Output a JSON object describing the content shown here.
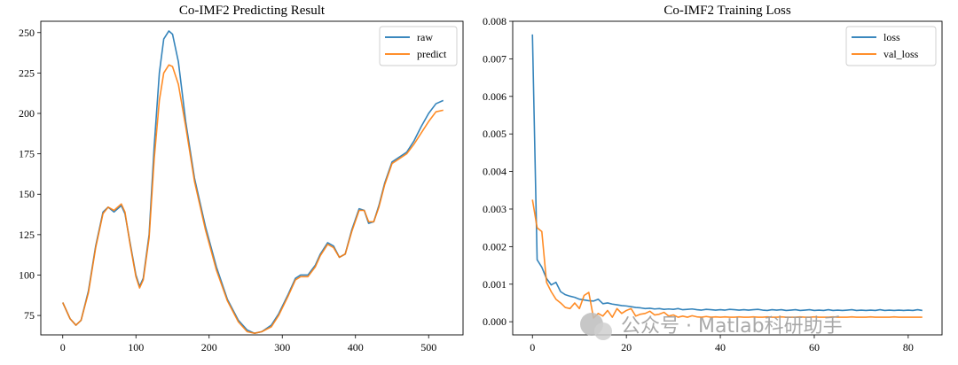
{
  "watermark": "公众号 · Matlab科研助手",
  "colors": {
    "raw": "#1f77b4",
    "predict": "#ff7f0e"
  },
  "chart_data": [
    {
      "type": "line",
      "title": "Co-IMF2 Predicting Result",
      "xlim": [
        -30,
        547
      ],
      "ylim": [
        63,
        257
      ],
      "xticks": [
        0,
        100,
        200,
        300,
        400,
        500
      ],
      "yticks": [
        75,
        100,
        125,
        150,
        175,
        200,
        225,
        250
      ],
      "legend_position": "top-right",
      "series": [
        {
          "name": "raw",
          "points": [
            [
              0,
              83
            ],
            [
              10,
              73
            ],
            [
              18,
              69
            ],
            [
              25,
              72
            ],
            [
              35,
              90
            ],
            [
              45,
              118
            ],
            [
              55,
              139
            ],
            [
              62,
              142
            ],
            [
              70,
              139
            ],
            [
              80,
              143
            ],
            [
              85,
              138
            ],
            [
              92,
              120
            ],
            [
              100,
              100
            ],
            [
              105,
              93
            ],
            [
              110,
              98
            ],
            [
              118,
              125
            ],
            [
              125,
              180
            ],
            [
              132,
              225
            ],
            [
              138,
              246
            ],
            [
              145,
              251
            ],
            [
              150,
              249
            ],
            [
              158,
              232
            ],
            [
              168,
              195
            ],
            [
              180,
              160
            ],
            [
              195,
              130
            ],
            [
              210,
              105
            ],
            [
              225,
              85
            ],
            [
              240,
              72
            ],
            [
              252,
              66
            ],
            [
              262,
              64
            ],
            [
              272,
              65
            ],
            [
              285,
              69
            ],
            [
              295,
              76
            ],
            [
              308,
              88
            ],
            [
              318,
              98
            ],
            [
              325,
              100
            ],
            [
              335,
              100
            ],
            [
              345,
              106
            ],
            [
              352,
              113
            ],
            [
              362,
              120
            ],
            [
              370,
              118
            ],
            [
              378,
              111
            ],
            [
              386,
              113
            ],
            [
              395,
              128
            ],
            [
              405,
              141
            ],
            [
              412,
              140
            ],
            [
              418,
              132
            ],
            [
              425,
              133
            ],
            [
              432,
              143
            ],
            [
              440,
              157
            ],
            [
              450,
              170
            ],
            [
              460,
              173
            ],
            [
              470,
              176
            ],
            [
              480,
              183
            ],
            [
              490,
              192
            ],
            [
              500,
              200
            ],
            [
              510,
              206
            ],
            [
              520,
              208
            ]
          ]
        },
        {
          "name": "predict",
          "points": [
            [
              0,
              83
            ],
            [
              10,
              73
            ],
            [
              18,
              69
            ],
            [
              25,
              72
            ],
            [
              35,
              89
            ],
            [
              45,
              117
            ],
            [
              55,
              138
            ],
            [
              62,
              142
            ],
            [
              70,
              140
            ],
            [
              80,
              144
            ],
            [
              85,
              139
            ],
            [
              92,
              119
            ],
            [
              100,
              99
            ],
            [
              105,
              92
            ],
            [
              110,
              97
            ],
            [
              118,
              123
            ],
            [
              125,
              172
            ],
            [
              132,
              208
            ],
            [
              138,
              225
            ],
            [
              145,
              230
            ],
            [
              150,
              229
            ],
            [
              158,
              218
            ],
            [
              168,
              192
            ],
            [
              180,
              158
            ],
            [
              195,
              128
            ],
            [
              210,
              103
            ],
            [
              225,
              84
            ],
            [
              240,
              71
            ],
            [
              252,
              65
            ],
            [
              262,
              64
            ],
            [
              272,
              65
            ],
            [
              285,
              68
            ],
            [
              295,
              75
            ],
            [
              308,
              87
            ],
            [
              318,
              97
            ],
            [
              325,
              99
            ],
            [
              335,
              99
            ],
            [
              345,
              105
            ],
            [
              352,
              112
            ],
            [
              362,
              119
            ],
            [
              370,
              117
            ],
            [
              378,
              111
            ],
            [
              386,
              113
            ],
            [
              395,
              127
            ],
            [
              405,
              140
            ],
            [
              412,
              140
            ],
            [
              418,
              133
            ],
            [
              425,
              133
            ],
            [
              432,
              142
            ],
            [
              440,
              156
            ],
            [
              450,
              169
            ],
            [
              460,
              172
            ],
            [
              470,
              175
            ],
            [
              480,
              181
            ],
            [
              490,
              188
            ],
            [
              500,
              195
            ],
            [
              510,
              201
            ],
            [
              520,
              202
            ]
          ]
        }
      ]
    },
    {
      "type": "line",
      "title": "Co-IMF2 Training Loss",
      "xlim": [
        -4.2,
        87.2
      ],
      "ylim": [
        -0.00035,
        0.008
      ],
      "xticks": [
        0,
        20,
        40,
        60,
        80
      ],
      "yticks": [
        "0.000",
        "0.001",
        "0.002",
        "0.003",
        "0.004",
        "0.005",
        "0.006",
        "0.007",
        "0.008"
      ],
      "legend_position": "top-right",
      "series": [
        {
          "name": "loss",
          "x": [
            0,
            1,
            2,
            3,
            4,
            5,
            6,
            7,
            8,
            9,
            10,
            11,
            12,
            13,
            14,
            15,
            16,
            17,
            18,
            19,
            20,
            21,
            22,
            23,
            24,
            25,
            26,
            27,
            28,
            29,
            30,
            31,
            32,
            33,
            34,
            35,
            36,
            37,
            38,
            39,
            40,
            41,
            42,
            43,
            44,
            45,
            46,
            47,
            48,
            49,
            50,
            51,
            52,
            53,
            54,
            55,
            56,
            57,
            58,
            59,
            60,
            61,
            62,
            63,
            64,
            65,
            66,
            67,
            68,
            69,
            70,
            71,
            72,
            73,
            74,
            75,
            76,
            77,
            78,
            79,
            80,
            81,
            82,
            83
          ],
          "values": [
            0.00765,
            0.00165,
            0.00145,
            0.00115,
            0.00098,
            0.00105,
            0.0008,
            0.00072,
            0.00068,
            0.00065,
            0.0006,
            0.00058,
            0.00056,
            0.00055,
            0.0006,
            0.00048,
            0.0005,
            0.00047,
            0.00045,
            0.00043,
            0.00042,
            0.0004,
            0.00038,
            0.00037,
            0.00035,
            0.00036,
            0.00034,
            0.00035,
            0.00033,
            0.00034,
            0.00033,
            0.00035,
            0.00032,
            0.00033,
            0.00034,
            0.00032,
            0.00031,
            0.00033,
            0.00032,
            0.00031,
            0.00032,
            0.00031,
            0.00033,
            0.00032,
            0.00031,
            0.00032,
            0.00031,
            0.00032,
            0.00033,
            0.00031,
            0.0003,
            0.00032,
            0.00031,
            0.00032,
            0.0003,
            0.00031,
            0.00032,
            0.0003,
            0.00031,
            0.00032,
            0.0003,
            0.00031,
            0.0003,
            0.00032,
            0.0003,
            0.00031,
            0.0003,
            0.00031,
            0.00032,
            0.0003,
            0.00031,
            0.0003,
            0.00031,
            0.0003,
            0.00032,
            0.0003,
            0.00031,
            0.0003,
            0.00031,
            0.0003,
            0.00031,
            0.0003,
            0.00032,
            0.0003
          ]
        },
        {
          "name": "val_loss",
          "x": [
            0,
            1,
            2,
            3,
            4,
            5,
            6,
            7,
            8,
            9,
            10,
            11,
            12,
            13,
            14,
            15,
            16,
            17,
            18,
            19,
            20,
            21,
            22,
            23,
            24,
            25,
            26,
            27,
            28,
            29,
            30,
            31,
            32,
            33,
            34,
            35,
            36,
            37,
            38,
            39,
            40,
            41,
            42,
            43,
            44,
            45,
            46,
            47,
            48,
            49,
            50,
            51,
            52,
            53,
            54,
            55,
            56,
            57,
            58,
            59,
            60,
            61,
            62,
            63,
            64,
            65,
            66,
            67,
            68,
            69,
            70,
            71,
            72,
            73,
            74,
            75,
            76,
            77,
            78,
            79,
            80,
            81,
            82,
            83
          ],
          "values": [
            0.00325,
            0.0025,
            0.0024,
            0.00105,
            0.0008,
            0.0006,
            0.0005,
            0.00038,
            0.00035,
            0.0005,
            0.00035,
            0.0007,
            0.00078,
            0.0001,
            0.00022,
            0.00015,
            0.0003,
            0.00012,
            0.00035,
            0.00022,
            0.0003,
            0.00035,
            0.00015,
            0.0002,
            0.00022,
            0.00028,
            0.00018,
            0.0002,
            0.00025,
            0.00015,
            0.00018,
            0.00012,
            0.00015,
            0.00012,
            0.00016,
            0.00013,
            0.00012,
            0.00014,
            0.00012,
            0.00013,
            0.00012,
            0.00013,
            0.00012,
            0.00012,
            0.00013,
            0.00012,
            0.00012,
            0.00013,
            0.00012,
            0.00012,
            0.00013,
            0.00012,
            0.00012,
            0.00013,
            0.00012,
            0.00012,
            0.00012,
            0.00013,
            0.00012,
            0.00012,
            0.00013,
            0.00012,
            0.00012,
            0.00012,
            0.00013,
            0.00012,
            0.00012,
            0.00012,
            0.00013,
            0.00012,
            0.00012,
            0.00012,
            0.00013,
            0.00012,
            0.00012,
            0.00012,
            0.00012,
            0.00013,
            0.00012,
            0.00012,
            0.00012,
            0.00012,
            0.00012,
            0.00012
          ]
        }
      ]
    }
  ]
}
